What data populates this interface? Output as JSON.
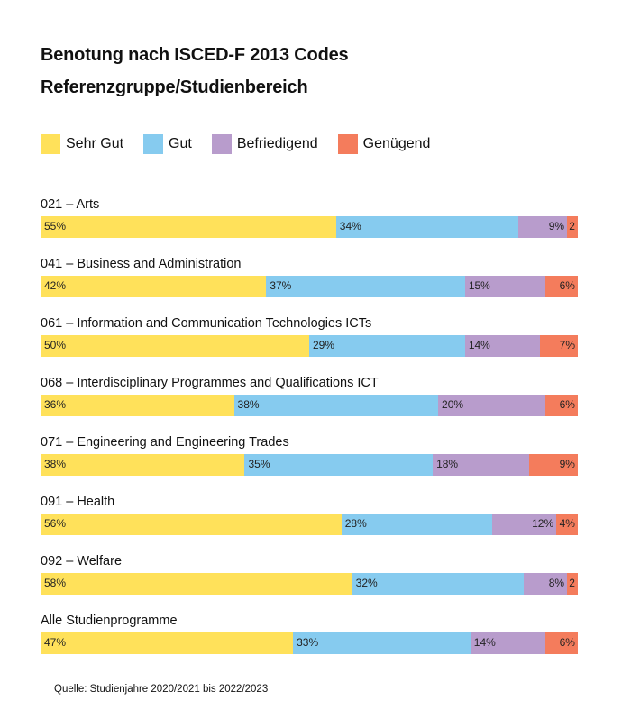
{
  "title_line1": "Benotung nach ISCED-F 2013 Codes",
  "title_line2": "Referenzgruppe/Studienbereich",
  "source": "Quelle: Studienjahre 2020/2021 bis 2022/2023",
  "colors": {
    "Sehr Gut": "#ffe15a",
    "Gut": "#86cbef",
    "Befriedigend": "#b89ccc",
    "Genügend": "#f47c5c"
  },
  "chart_data": {
    "type": "bar",
    "orientation": "horizontal",
    "stacked": true,
    "percent": true,
    "legend_position": "top",
    "categories": [
      "021 – Arts",
      "041 – Business and Administration",
      "061 – Information and Communication Technologies ICTs",
      "068 – Interdisciplinary Programmes and Qualifications ICT",
      "071  – Engineering and Engineering Trades",
      "091 – Health",
      "092 – Welfare",
      "Alle Studienprogramme"
    ],
    "series": [
      {
        "name": "Sehr Gut",
        "values": [
          55,
          42,
          50,
          36,
          38,
          56,
          58,
          47
        ]
      },
      {
        "name": "Gut",
        "values": [
          34,
          37,
          29,
          38,
          35,
          28,
          32,
          33
        ]
      },
      {
        "name": "Befriedigend",
        "values": [
          9,
          15,
          14,
          20,
          18,
          12,
          8,
          14
        ]
      },
      {
        "name": "Genügend",
        "values": [
          2,
          6,
          7,
          6,
          9,
          4,
          2,
          6
        ]
      }
    ],
    "value_labels": [
      [
        "55%",
        "34%",
        "9%",
        "2"
      ],
      [
        "42%",
        "37%",
        "15%",
        "6%"
      ],
      [
        "50%",
        "29%",
        "14%",
        "7%"
      ],
      [
        "36%",
        "38%",
        "20%",
        "6%"
      ],
      [
        "38%",
        "35%",
        "18%",
        "9%"
      ],
      [
        "56%",
        "28%",
        "12%",
        "4%"
      ],
      [
        "58%",
        "32%",
        "8%",
        "2"
      ],
      [
        "47%",
        "33%",
        "14%",
        "6%"
      ]
    ],
    "label_alignment": [
      [
        "left",
        "left",
        "right",
        "right"
      ],
      [
        "left",
        "left",
        "left",
        "right"
      ],
      [
        "left",
        "left",
        "left",
        "right"
      ],
      [
        "left",
        "left",
        "left",
        "right"
      ],
      [
        "left",
        "left",
        "left",
        "right"
      ],
      [
        "left",
        "left",
        "right",
        "right"
      ],
      [
        "left",
        "left",
        "right",
        "right"
      ],
      [
        "left",
        "left",
        "left",
        "right"
      ]
    ]
  }
}
